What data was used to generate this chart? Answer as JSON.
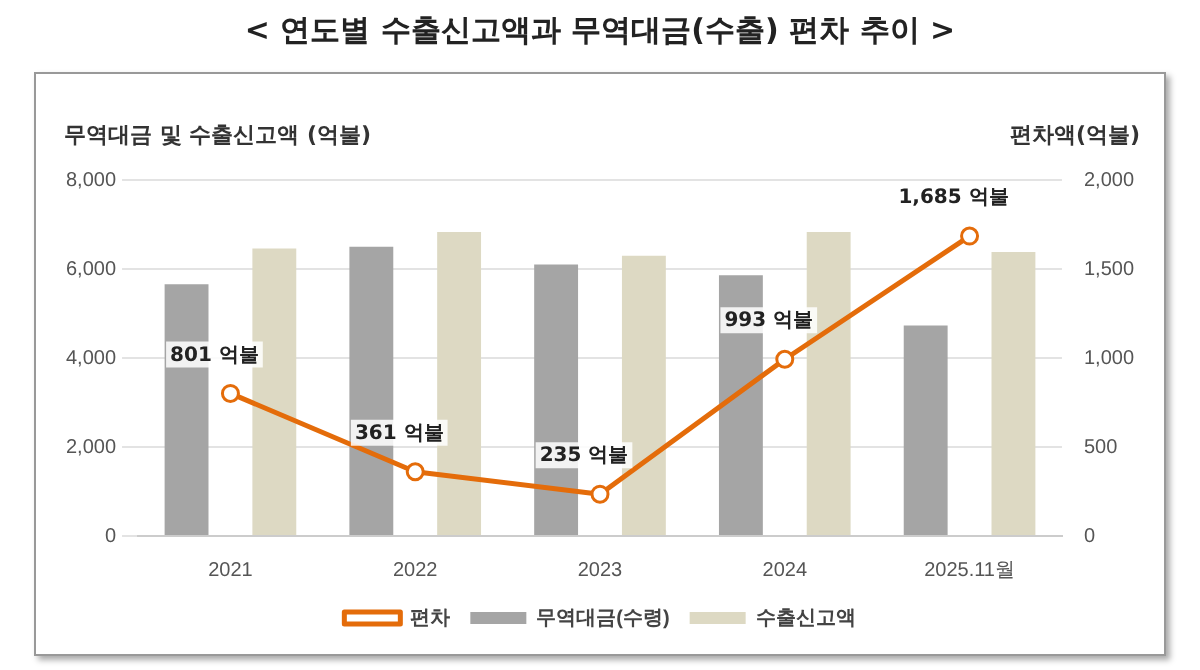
{
  "chart_data": {
    "type": "bar",
    "title": "< 연도별 수출신고액과 무역대금(수출) 편차 추이 >",
    "ylabel": "무역대금 및 수출신고액 (억불)",
    "y2label": "편차액(억불)",
    "categories": [
      "2021",
      "2022",
      "2023",
      "2024",
      "2025.11월"
    ],
    "series": [
      {
        "name": "무역대금(수령)",
        "color": "#a5a5a5",
        "values": [
          5660,
          6500,
          6100,
          5860,
          4730
        ]
      },
      {
        "name": "수출신고액",
        "color": "#ddd9c3",
        "values": [
          6460,
          6830,
          6300,
          6830,
          6380
        ]
      },
      {
        "name": "편차",
        "type": "line",
        "axis": "y2",
        "color": "#e46c0a",
        "values": [
          801,
          361,
          235,
          993,
          1685
        ],
        "value_labels": [
          "801 억불",
          "361 억불",
          "235 억불",
          "993 억불",
          "1,685 억불"
        ]
      }
    ],
    "ylim": [
      0,
      8000
    ],
    "yticks": [
      0,
      {
        "value": 2000,
        "label": "2,000"
      },
      {
        "value": 4000,
        "label": "4,000"
      },
      {
        "value": 6000,
        "label": "6,000"
      },
      {
        "value": 8000,
        "label": "8,000"
      }
    ],
    "y2lim": [
      0,
      2000
    ],
    "y2ticks": [
      0,
      500,
      {
        "value": 1000,
        "label": "1,000"
      },
      {
        "value": 1500,
        "label": "1,500"
      },
      {
        "value": 2000,
        "label": "2,000"
      }
    ],
    "grid": "y",
    "legend": "bottom",
    "marker": "circle",
    "line_style": "solid"
  }
}
